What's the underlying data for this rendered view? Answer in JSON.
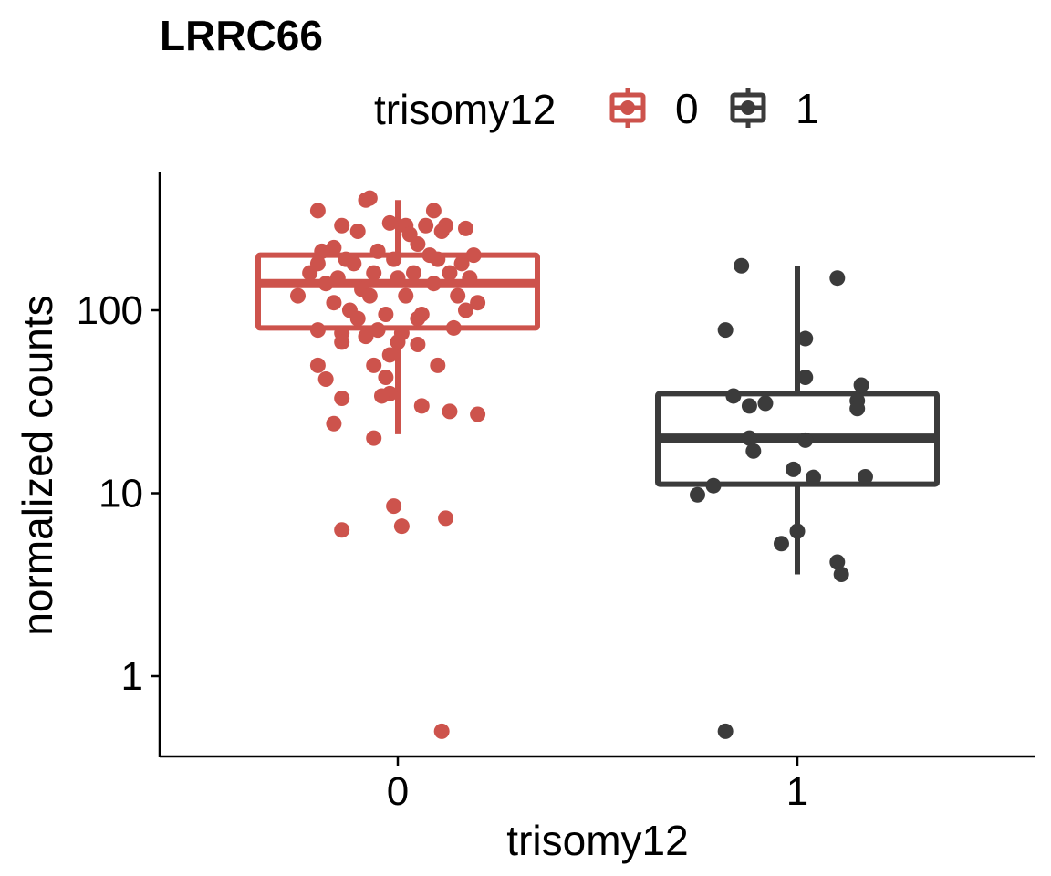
{
  "chart_data": {
    "type": "box",
    "title": "LRRC66",
    "xlabel": "trisomy12",
    "ylabel": "normalized counts",
    "y_scale": "log10",
    "ylim": [
      0.35,
      600
    ],
    "y_ticks": [
      {
        "value": 1,
        "label": "1"
      },
      {
        "value": 10,
        "label": "10"
      },
      {
        "value": 100,
        "label": "100"
      }
    ],
    "categories": [
      "0",
      "1"
    ],
    "legend": {
      "title": "trisomy12",
      "position": "top",
      "entries": [
        "0",
        "1"
      ]
    },
    "colors": {
      "0": "#cd534c",
      "1": "#3b3b3b"
    },
    "grid": false,
    "series": [
      {
        "name": "0",
        "box": {
          "lower_whisker": 21,
          "q1": 80,
          "median": 140,
          "q3": 200,
          "upper_whisker": 400
        },
        "points": [
          [
            -0.2,
            350
          ],
          [
            -0.08,
            400
          ],
          [
            -0.07,
            410
          ],
          [
            0.09,
            350
          ],
          [
            -0.14,
            290
          ],
          [
            -0.1,
            270
          ],
          [
            -0.02,
            300
          ],
          [
            0.02,
            290
          ],
          [
            0.07,
            290
          ],
          [
            0.12,
            290
          ],
          [
            0.17,
            280
          ],
          [
            -0.16,
            220
          ],
          [
            -0.19,
            210
          ],
          [
            0.03,
            260
          ],
          [
            0.11,
            270
          ],
          [
            -0.13,
            190
          ],
          [
            -0.05,
            210
          ],
          [
            0.05,
            230
          ],
          [
            0.08,
            200
          ],
          [
            0.19,
            200
          ],
          [
            -0.2,
            180
          ],
          [
            -0.11,
            180
          ],
          [
            -0.01,
            190
          ],
          [
            0.1,
            190
          ],
          [
            0.16,
            180
          ],
          [
            -0.22,
            160
          ],
          [
            -0.15,
            150
          ],
          [
            -0.06,
            160
          ],
          [
            0.04,
            160
          ],
          [
            0.13,
            160
          ],
          [
            -0.18,
            140
          ],
          [
            -0.09,
            130
          ],
          [
            0.0,
            150
          ],
          [
            0.09,
            140
          ],
          [
            0.18,
            150
          ],
          [
            -0.25,
            120
          ],
          [
            -0.16,
            110
          ],
          [
            -0.07,
            120
          ],
          [
            0.02,
            120
          ],
          [
            0.15,
            120
          ],
          [
            0.2,
            110
          ],
          [
            -0.12,
            100
          ],
          [
            -0.03,
            95
          ],
          [
            0.06,
            95
          ],
          [
            0.17,
            100
          ],
          [
            -0.1,
            90
          ],
          [
            0.05,
            90
          ],
          [
            0.14,
            80
          ],
          [
            -0.2,
            78
          ],
          [
            -0.14,
            75
          ],
          [
            -0.05,
            78
          ],
          [
            0.01,
            75
          ],
          [
            -0.08,
            72
          ],
          [
            -0.14,
            67
          ],
          [
            0.0,
            67
          ],
          [
            0.05,
            65
          ],
          [
            -0.02,
            57
          ],
          [
            -0.2,
            50
          ],
          [
            -0.06,
            50
          ],
          [
            0.1,
            50
          ],
          [
            -0.18,
            42
          ],
          [
            -0.03,
            43
          ],
          [
            -0.02,
            35
          ],
          [
            -0.04,
            34
          ],
          [
            -0.14,
            33
          ],
          [
            0.06,
            30
          ],
          [
            0.13,
            28
          ],
          [
            0.2,
            27
          ],
          [
            -0.16,
            24
          ],
          [
            -0.06,
            20
          ],
          [
            -0.01,
            8.5
          ],
          [
            0.12,
            7.3
          ],
          [
            0.01,
            6.6
          ],
          [
            -0.14,
            6.3
          ],
          [
            0.11,
            0.5
          ]
        ]
      },
      {
        "name": "1",
        "box": {
          "lower_whisker": 3.6,
          "q1": 11.2,
          "median": 20,
          "q3": 35,
          "upper_whisker": 175
        },
        "points": [
          [
            0.86,
            175
          ],
          [
            1.1,
            150
          ],
          [
            0.82,
            78
          ],
          [
            1.02,
            70
          ],
          [
            1.02,
            43
          ],
          [
            1.16,
            39
          ],
          [
            1.15,
            32
          ],
          [
            0.84,
            34
          ],
          [
            0.88,
            30
          ],
          [
            0.92,
            31
          ],
          [
            1.15,
            29
          ],
          [
            0.88,
            20
          ],
          [
            1.02,
            19.5
          ],
          [
            0.89,
            17
          ],
          [
            0.99,
            13.5
          ],
          [
            1.04,
            12.2
          ],
          [
            1.17,
            12.3
          ],
          [
            0.79,
            11
          ],
          [
            0.75,
            9.8
          ],
          [
            1.0,
            6.2
          ],
          [
            0.96,
            5.3
          ],
          [
            1.1,
            4.2
          ],
          [
            1.11,
            3.6
          ],
          [
            0.82,
            0.5
          ]
        ]
      }
    ]
  }
}
